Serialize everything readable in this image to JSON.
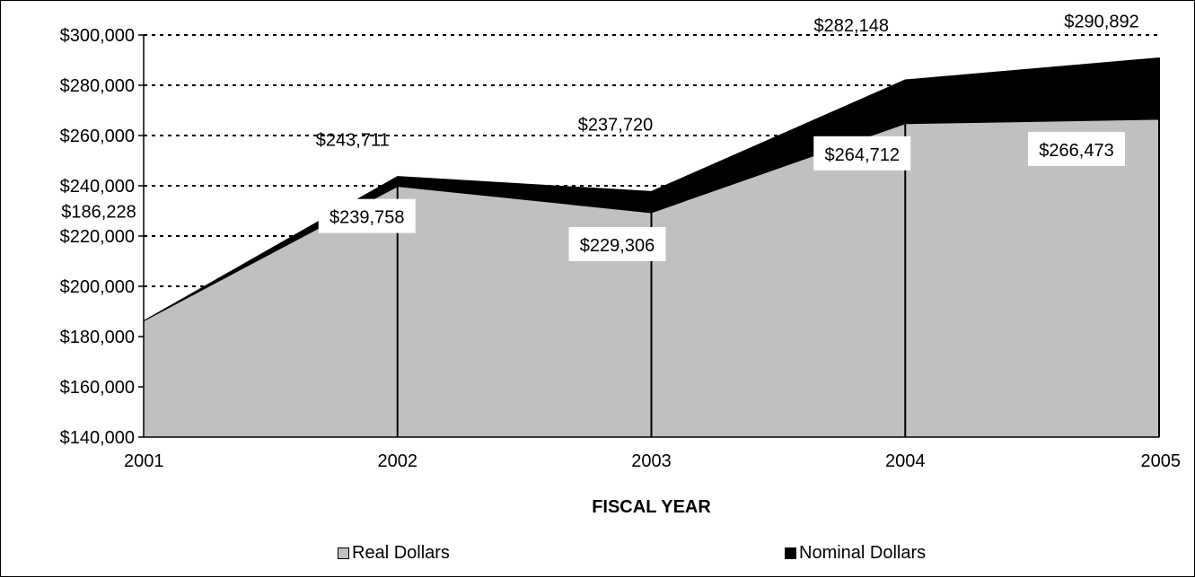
{
  "chart_data": {
    "type": "area",
    "xlabel": "FISCAL YEAR",
    "ylabel": "",
    "categories": [
      "2001",
      "2002",
      "2003",
      "2004",
      "2005"
    ],
    "ylim": [
      140000,
      300000
    ],
    "ytick_step": 20000,
    "yticks": [
      "$140,000",
      "$160,000",
      "$180,000",
      "$200,000",
      "$220,000",
      "$240,000",
      "$260,000",
      "$280,000",
      "$300,000"
    ],
    "grid": "horizontal dotted",
    "legend_position": "bottom",
    "series": [
      {
        "name": "Real Dollars",
        "values": [
          186228,
          239758,
          229306,
          264712,
          266473
        ],
        "color": "#c0c0c0",
        "labels": [
          "",
          "$239,758",
          "$229,306",
          "$264,712",
          "$266,473"
        ]
      },
      {
        "name": "Nominal Dollars",
        "values": [
          186228,
          243711,
          237720,
          282148,
          290892
        ],
        "color": "#000000",
        "labels": [
          "$186,228",
          "$243,711",
          "$237,720",
          "$282,148",
          "$290,892"
        ]
      }
    ]
  }
}
